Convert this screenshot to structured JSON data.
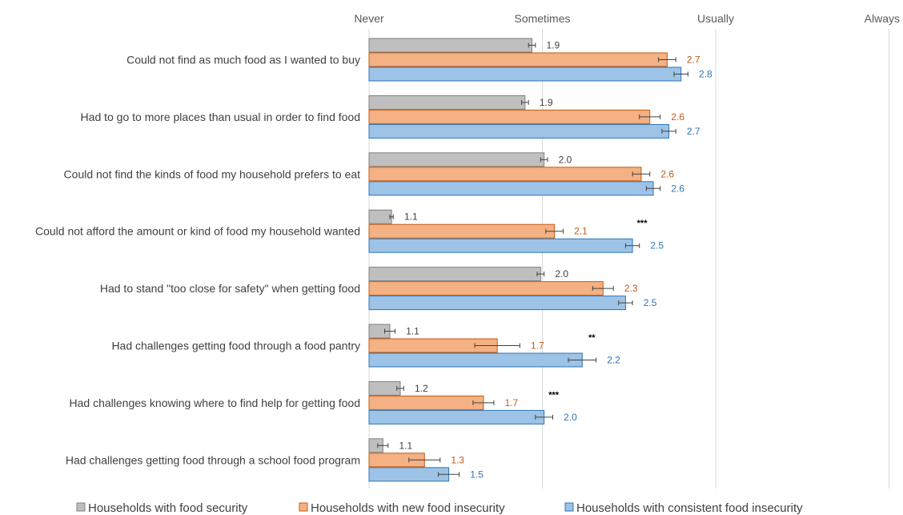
{
  "chart_data": {
    "type": "bar",
    "orientation": "horizontal",
    "x_ticks": [
      "Never",
      "Sometimes",
      "Usually",
      "Always"
    ],
    "xlim": [
      1,
      4
    ],
    "grid": true,
    "legend_position": "bottom",
    "categories": [
      "Could not find as much food as I wanted to buy",
      "Had to go to more places than usual in order to find food",
      "Could not find the kinds of food my household prefers to eat",
      "Could not afford the amount or kind of food my household wanted",
      "Had to stand \"too close for safety\" when getting food",
      "Had challenges getting food through a food pantry",
      "Had challenges knowing where to find help for getting food",
      "Had challenges getting food through a school food program"
    ],
    "series": [
      {
        "name": "Households with food security",
        "color": "#bfbfbf",
        "border": "#7f7f7f",
        "label_color": "#404040",
        "values": [
          1.94,
          1.9,
          2.01,
          1.13,
          1.99,
          1.12,
          1.18,
          1.08
        ],
        "errors": [
          0.02,
          0.02,
          0.02,
          0.01,
          0.02,
          0.03,
          0.02,
          0.03
        ],
        "labels": [
          "1.9",
          "1.9",
          "2.0",
          "1.1",
          "2.0",
          "1.1",
          "1.2",
          "1.1"
        ]
      },
      {
        "name": "Households with new food insecurity",
        "color": "#f4b183",
        "border": "#c55a11",
        "label_color": "#c55a11",
        "values": [
          2.72,
          2.62,
          2.57,
          2.07,
          2.35,
          1.74,
          1.66,
          1.32
        ],
        "errors": [
          0.05,
          0.06,
          0.05,
          0.05,
          0.06,
          0.13,
          0.06,
          0.09
        ],
        "labels": [
          "2.7",
          "2.6",
          "2.6",
          "2.1",
          "2.3",
          "1.7",
          "1.7",
          "1.3"
        ]
      },
      {
        "name": "Households with consistent food insecurity",
        "color": "#9dc3e6",
        "border": "#2e75b6",
        "label_color": "#2e75b6",
        "values": [
          2.8,
          2.73,
          2.64,
          2.52,
          2.48,
          2.23,
          2.01,
          1.46
        ],
        "errors": [
          0.04,
          0.04,
          0.04,
          0.04,
          0.04,
          0.08,
          0.05,
          0.06
        ],
        "labels": [
          "2.8",
          "2.7",
          "2.6",
          "2.5",
          "2.5",
          "2.2",
          "2.0",
          "1.5"
        ]
      }
    ],
    "annotations": [
      {
        "category_index": 3,
        "text": "***"
      },
      {
        "category_index": 5,
        "text": "**"
      },
      {
        "category_index": 6,
        "text": "***"
      }
    ]
  }
}
